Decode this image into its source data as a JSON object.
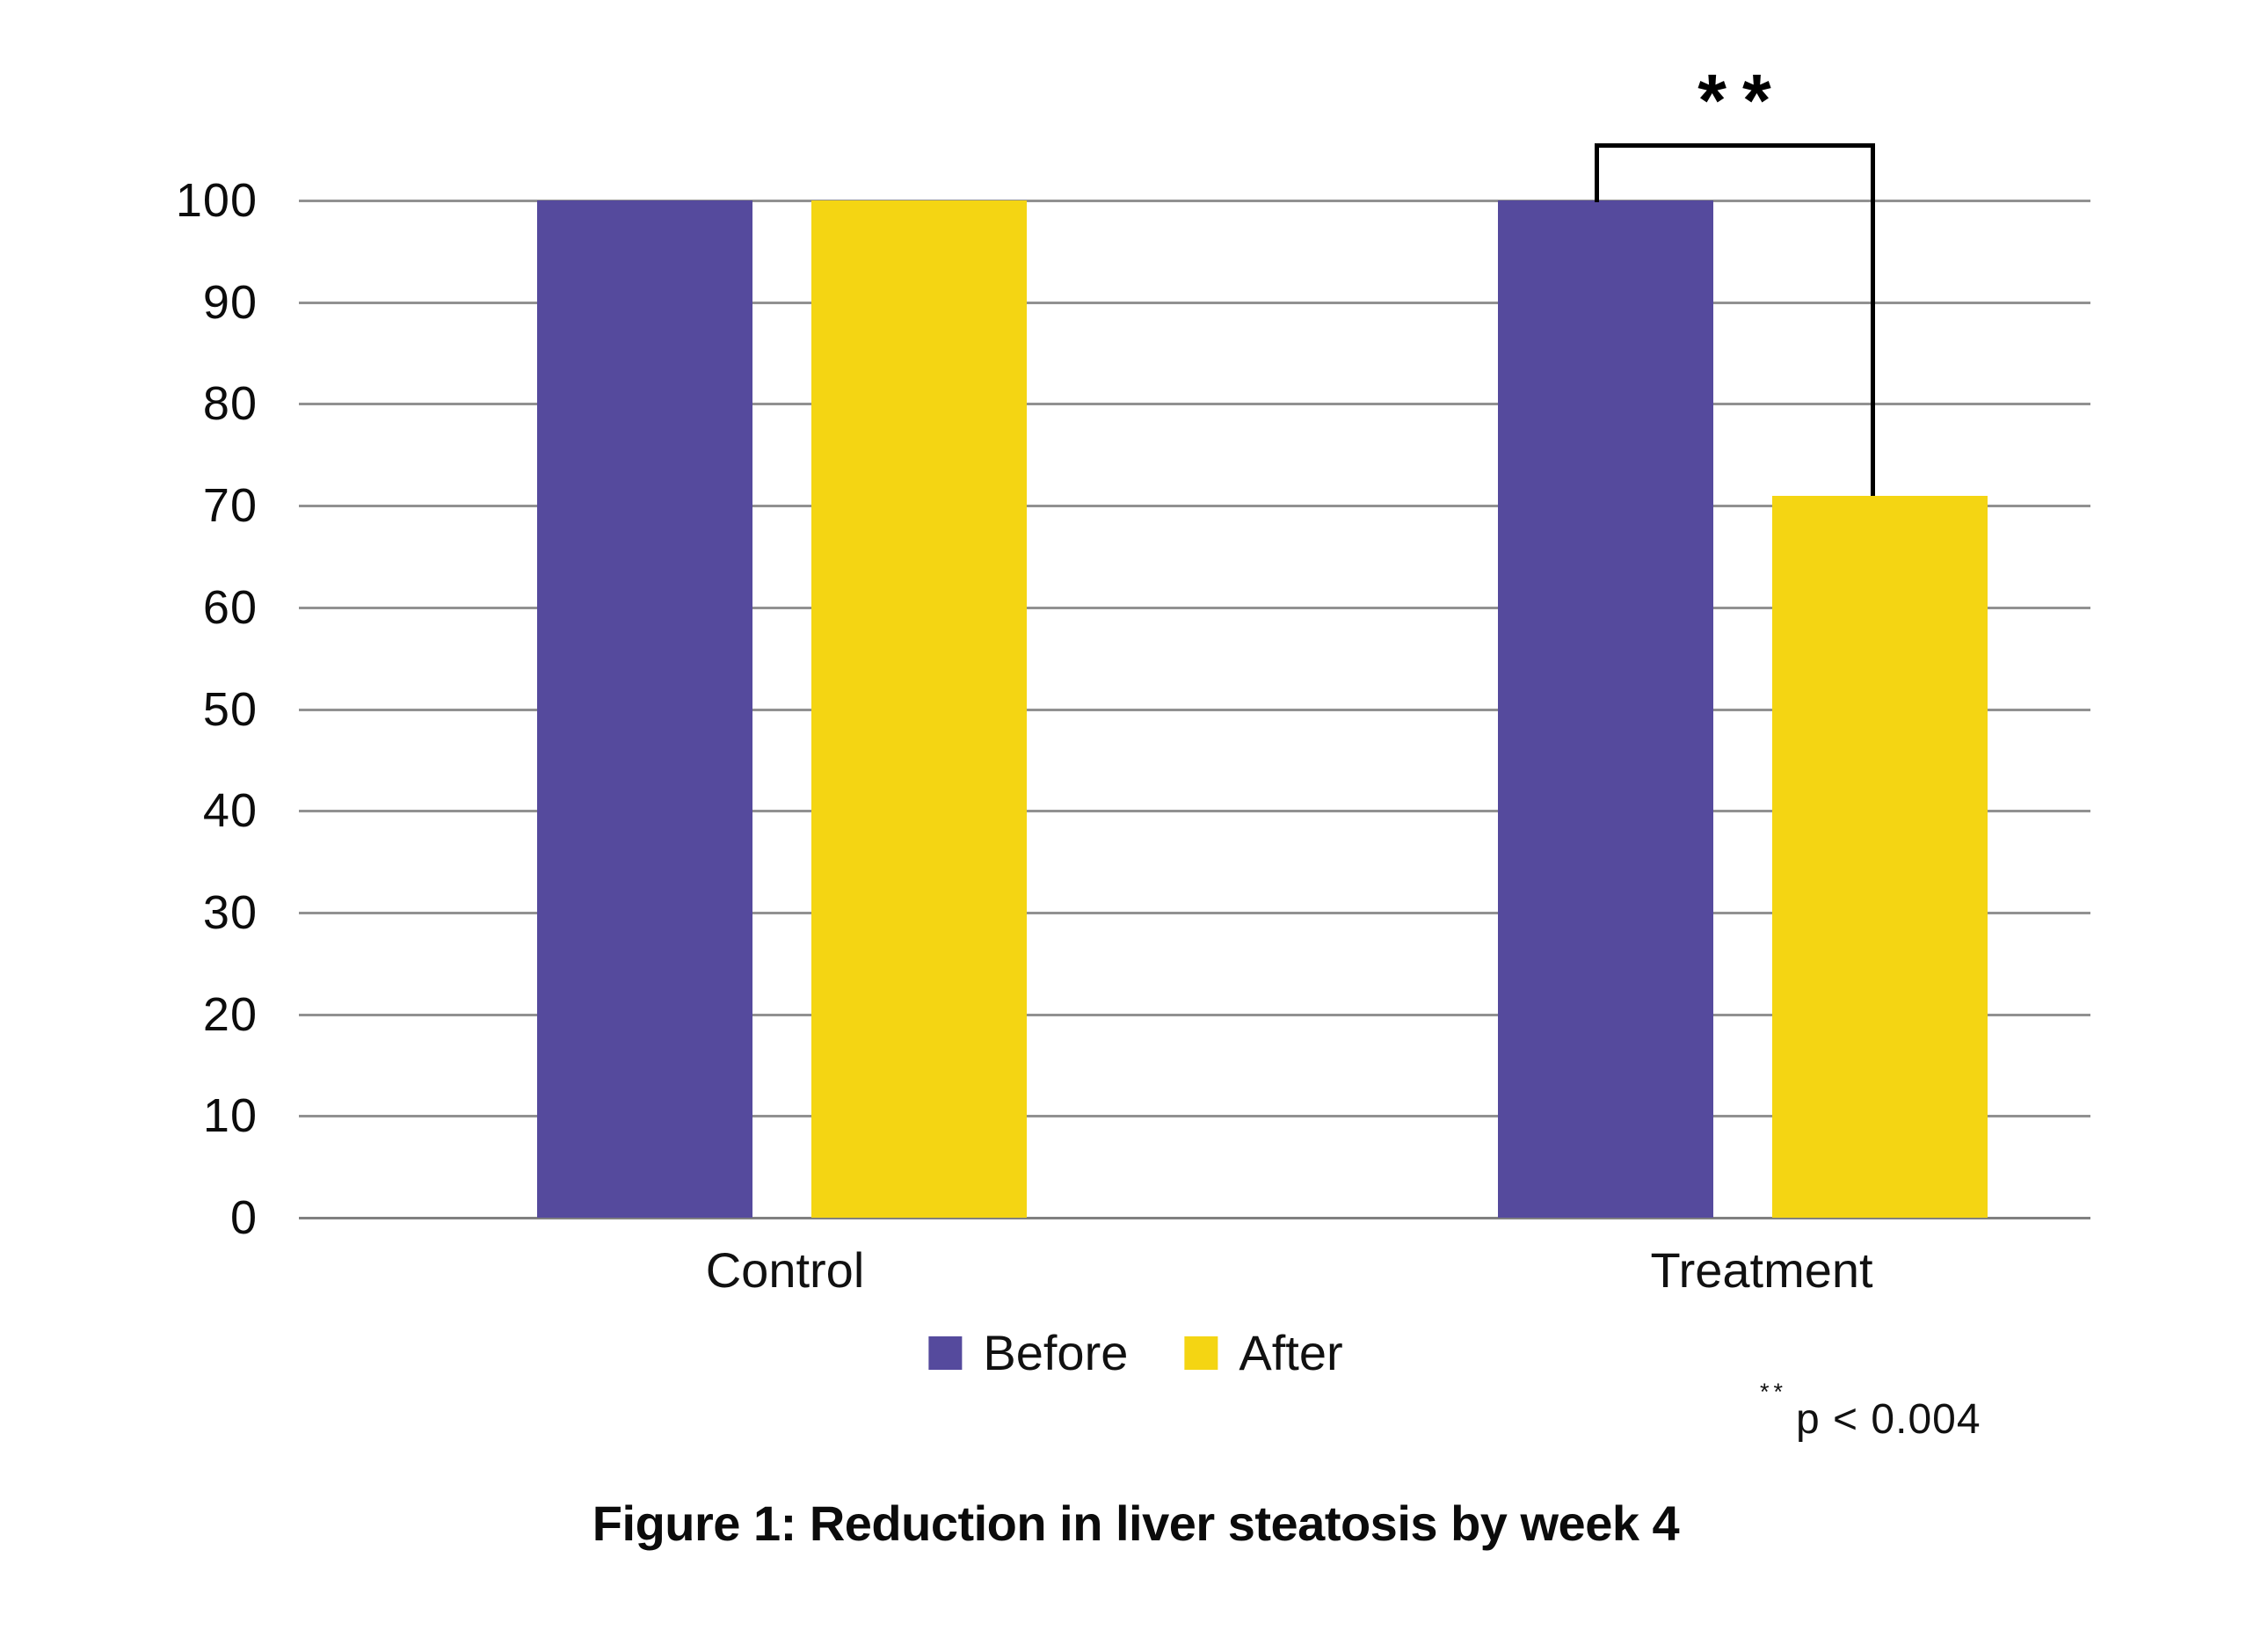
{
  "chart_data": {
    "type": "bar",
    "caption": "Figure 1: Reduction in liver steatosis by week 4",
    "categories": [
      "Control",
      "Treatment"
    ],
    "series": [
      {
        "name": "Before",
        "color": "#554A9D",
        "values": [
          100,
          100
        ]
      },
      {
        "name": "After",
        "color": "#F4D513",
        "values": [
          100,
          71
        ]
      }
    ],
    "ylim": [
      0,
      100
    ],
    "yticks": [
      0,
      10,
      20,
      30,
      40,
      50,
      60,
      70,
      80,
      90,
      100
    ],
    "grid": "horizontal",
    "gridline_color": "#919191",
    "baseline_color": "#808080",
    "legend_position": "bottom-center",
    "significance": {
      "label": "**",
      "between": [
        "Treatment Before",
        "Treatment After"
      ],
      "note_symbol": "**",
      "note_text": "p < 0.004"
    }
  }
}
